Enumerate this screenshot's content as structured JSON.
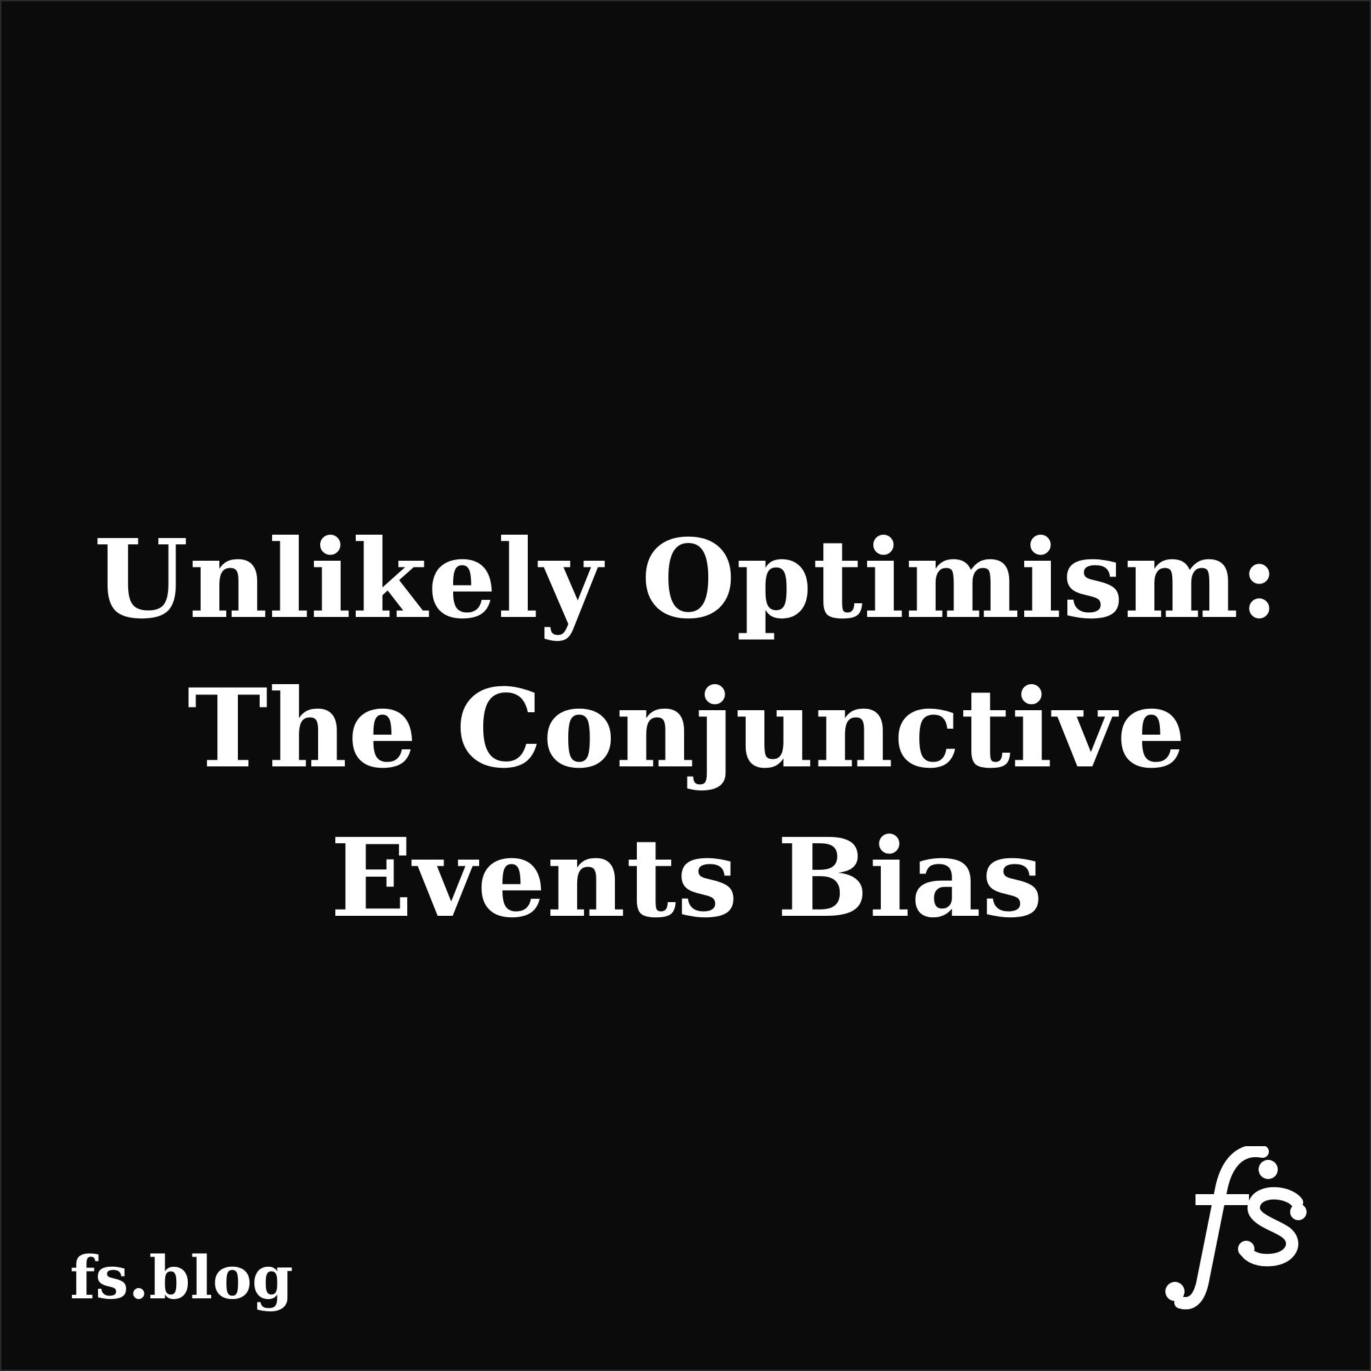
{
  "title": {
    "line1": "Unlikely Optimism:",
    "line2": "The Conjunctive",
    "line3": "Events Bias"
  },
  "footer": {
    "site_url": "fs.blog",
    "logo_icon": "fs-monogram-logo"
  },
  "colors": {
    "background": "#0b0b0b",
    "text": "#ffffff"
  }
}
